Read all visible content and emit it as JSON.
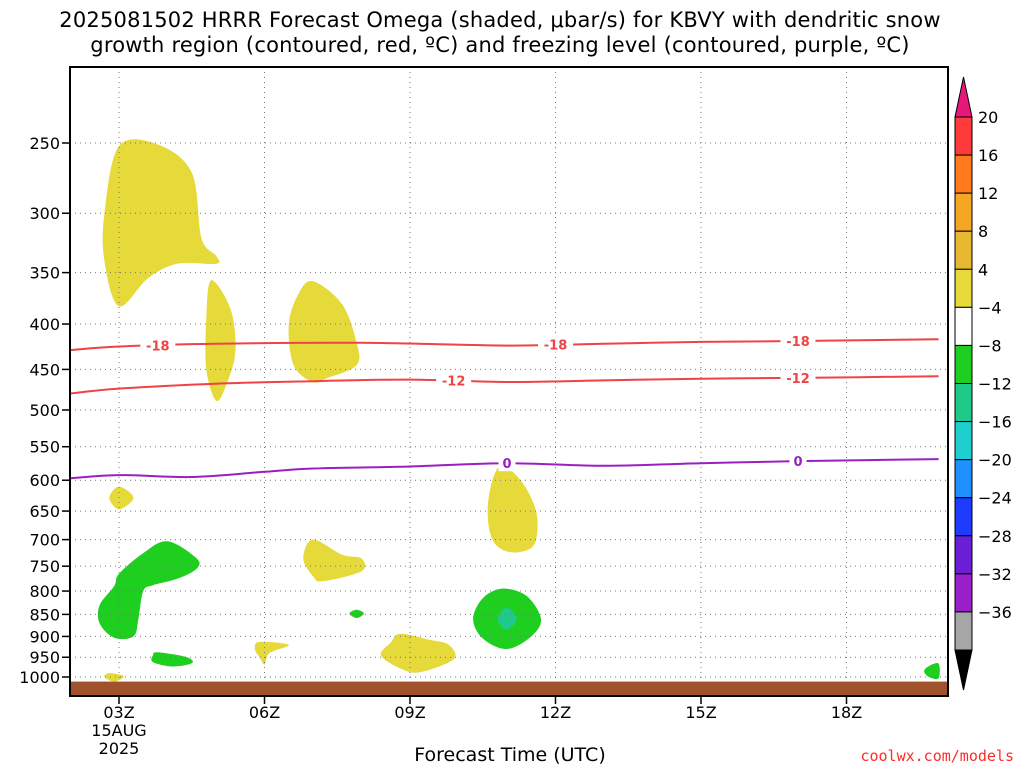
{
  "chart_data": {
    "type": "heatmap",
    "title_line1": "2025081502 HRRR Forecast Omega (shaded, μbar/s) for KBVY with dendritic snow",
    "title_line2": "growth region (contoured, red, ºC) and freezing level (contoured, purple, ºC)",
    "xlabel": "Forecast Time (UTC)",
    "x_ticks": [
      {
        "hour": 3,
        "label": "03Z",
        "sub1": "15AUG",
        "sub2": "2025"
      },
      {
        "hour": 6,
        "label": "06Z"
      },
      {
        "hour": 9,
        "label": "09Z"
      },
      {
        "hour": 12,
        "label": "12Z"
      },
      {
        "hour": 15,
        "label": "15Z"
      },
      {
        "hour": 18,
        "label": "18Z"
      }
    ],
    "xlim": [
      2,
      19.9
    ],
    "y_ticks": [
      250,
      300,
      350,
      400,
      450,
      500,
      550,
      600,
      650,
      700,
      750,
      800,
      850,
      900,
      950,
      1000
    ],
    "ylim_hPa": [
      200,
      1030
    ],
    "colorbar": {
      "labels": [
        20,
        16,
        12,
        8,
        4,
        -4,
        -8,
        -12,
        -16,
        -20,
        -24,
        -28,
        -32,
        -36
      ],
      "colors": [
        "#ff3a3a",
        "#ff7a1c",
        "#f5a623",
        "#e8b830",
        "#e6d93a",
        "#ffffff",
        "#1fcf1f",
        "#1ec98a",
        "#1fcfcf",
        "#1e90ff",
        "#1e3cff",
        "#6a1fd6",
        "#9a1fc8",
        "#a6a6a6"
      ],
      "top_cap_color": "#e8187a",
      "bottom_cap_color": "#000000"
    },
    "contours": [
      {
        "level": -18,
        "label": "-18",
        "color": "#ee4444",
        "points": [
          [
            2.0,
            428
          ],
          [
            3.0,
            424
          ],
          [
            5.0,
            421
          ],
          [
            8.0,
            420
          ],
          [
            11.0,
            423
          ],
          [
            13.0,
            421
          ],
          [
            15.0,
            419
          ],
          [
            17.0,
            418
          ],
          [
            19.9,
            416
          ]
        ],
        "label_hours": [
          3.8,
          12.0,
          17.0
        ]
      },
      {
        "level": -12,
        "label": "-12",
        "color": "#ee4444",
        "points": [
          [
            2.0,
            479
          ],
          [
            3.0,
            473
          ],
          [
            5.0,
            467
          ],
          [
            7.0,
            464
          ],
          [
            9.0,
            462
          ],
          [
            11.0,
            465
          ],
          [
            13.0,
            463
          ],
          [
            15.0,
            461
          ],
          [
            17.0,
            460
          ],
          [
            19.9,
            458
          ]
        ],
        "label_hours": [
          9.9,
          17.0
        ]
      },
      {
        "level": 0,
        "label": "0",
        "color": "#9b1fc0",
        "points": [
          [
            2.0,
            597
          ],
          [
            3.0,
            592
          ],
          [
            4.5,
            595
          ],
          [
            6.0,
            587
          ],
          [
            7.0,
            582
          ],
          [
            9.0,
            579
          ],
          [
            11.0,
            574
          ],
          [
            13.0,
            578
          ],
          [
            15.0,
            574
          ],
          [
            17.0,
            571
          ],
          [
            19.9,
            568
          ]
        ],
        "label_hours": [
          11.0,
          17.0
        ]
      }
    ],
    "omega_regions": [
      {
        "name": "yellow-upper-1",
        "bin": "4 to 8",
        "color": "#e6d93a",
        "points": [
          [
            3.0,
            252
          ],
          [
            3.8,
            251
          ],
          [
            4.5,
            270
          ],
          [
            4.7,
            320
          ],
          [
            5.0,
            335
          ],
          [
            5.0,
            342
          ],
          [
            4.2,
            342
          ],
          [
            3.6,
            355
          ],
          [
            3.0,
            382
          ],
          [
            2.7,
            340
          ],
          [
            2.7,
            300
          ]
        ]
      },
      {
        "name": "yellow-upper-2",
        "bin": "4 to 8",
        "color": "#e6d93a",
        "points": [
          [
            4.9,
            357
          ],
          [
            5.3,
            385
          ],
          [
            5.4,
            430
          ],
          [
            5.2,
            470
          ],
          [
            5.0,
            488
          ],
          [
            4.8,
            450
          ],
          [
            4.8,
            395
          ]
        ]
      },
      {
        "name": "yellow-upper-3",
        "bin": "4 to 8",
        "color": "#e6d93a",
        "points": [
          [
            7.0,
            358
          ],
          [
            7.6,
            380
          ],
          [
            7.9,
            420
          ],
          [
            7.9,
            445
          ],
          [
            7.3,
            460
          ],
          [
            7.0,
            465
          ],
          [
            6.6,
            445
          ],
          [
            6.5,
            400
          ],
          [
            6.7,
            370
          ]
        ]
      },
      {
        "name": "yellow-small-1",
        "bin": "4 to 8",
        "color": "#e6d93a",
        "points": [
          [
            3.0,
            610
          ],
          [
            3.3,
            628
          ],
          [
            3.0,
            647
          ],
          [
            2.8,
            628
          ]
        ]
      },
      {
        "name": "yellow-mid-1",
        "bin": "4 to 8",
        "color": "#e6d93a",
        "points": [
          [
            10.9,
            578
          ],
          [
            11.3,
            602
          ],
          [
            11.6,
            650
          ],
          [
            11.6,
            700
          ],
          [
            11.4,
            720
          ],
          [
            11.0,
            722
          ],
          [
            10.7,
            700
          ],
          [
            10.6,
            650
          ],
          [
            10.7,
            600
          ]
        ]
      },
      {
        "name": "yellow-mid-2",
        "bin": "4 to 8",
        "color": "#e6d93a",
        "points": [
          [
            7.0,
            700
          ],
          [
            7.6,
            728
          ],
          [
            8.0,
            735
          ],
          [
            8.0,
            760
          ],
          [
            7.2,
            780
          ],
          [
            7.0,
            770
          ],
          [
            6.8,
            735
          ]
        ]
      },
      {
        "name": "yellow-low-1",
        "bin": "4 to 8",
        "color": "#e6d93a",
        "points": [
          [
            8.8,
            894
          ],
          [
            9.4,
            908
          ],
          [
            9.8,
            920
          ],
          [
            9.9,
            955
          ],
          [
            9.2,
            988
          ],
          [
            8.8,
            978
          ],
          [
            8.4,
            945
          ],
          [
            8.6,
            915
          ]
        ]
      },
      {
        "name": "yellow-low-2",
        "bin": "4 to 8",
        "color": "#e6d93a",
        "points": [
          [
            5.9,
            913
          ],
          [
            6.5,
            920
          ],
          [
            6.1,
            940
          ],
          [
            6.0,
            968
          ],
          [
            5.9,
            950
          ],
          [
            5.8,
            930
          ]
        ]
      },
      {
        "name": "yellow-low-3",
        "bin": "4 to 8",
        "color": "#e6d93a",
        "points": [
          [
            2.8,
            990
          ],
          [
            3.1,
            998
          ],
          [
            2.9,
            1012
          ],
          [
            2.7,
            1000
          ]
        ]
      },
      {
        "name": "green-1",
        "bin": "-8 to -4",
        "color": "#1fcf1f",
        "points": [
          [
            4.0,
            703
          ],
          [
            4.6,
            735
          ],
          [
            4.6,
            755
          ],
          [
            4.2,
            775
          ],
          [
            3.7,
            788
          ],
          [
            3.5,
            800
          ],
          [
            3.4,
            860
          ],
          [
            3.3,
            900
          ],
          [
            2.9,
            903
          ],
          [
            2.6,
            870
          ],
          [
            2.6,
            830
          ],
          [
            2.9,
            790
          ],
          [
            3.0,
            765
          ],
          [
            3.5,
            725
          ]
        ]
      },
      {
        "name": "green-2",
        "bin": "-8 to -4",
        "color": "#1fcf1f",
        "points": [
          [
            3.8,
            938
          ],
          [
            4.4,
            950
          ],
          [
            4.5,
            965
          ],
          [
            4.1,
            973
          ],
          [
            3.7,
            962
          ],
          [
            3.7,
            945
          ]
        ]
      },
      {
        "name": "green-3",
        "bin": "-8 to -4",
        "color": "#1fcf1f",
        "points": [
          [
            10.9,
            795
          ],
          [
            11.4,
            810
          ],
          [
            11.7,
            860
          ],
          [
            11.5,
            900
          ],
          [
            11.0,
            930
          ],
          [
            10.5,
            905
          ],
          [
            10.3,
            860
          ],
          [
            10.5,
            815
          ]
        ]
      },
      {
        "name": "green-4",
        "bin": "-8 to -4",
        "color": "#1fcf1f",
        "points": [
          [
            7.9,
            840
          ],
          [
            8.05,
            848
          ],
          [
            7.9,
            858
          ],
          [
            7.75,
            848
          ]
        ]
      },
      {
        "name": "green-5",
        "bin": "-8 to -4",
        "color": "#1fcf1f",
        "points": [
          [
            19.9,
            966
          ],
          [
            19.9,
            1003
          ],
          [
            19.7,
            1000
          ],
          [
            19.6,
            985
          ],
          [
            19.7,
            972
          ]
        ]
      },
      {
        "name": "teal-1",
        "bin": "-12 to -8",
        "color": "#1ec98a",
        "points": [
          [
            11.0,
            835
          ],
          [
            11.2,
            860
          ],
          [
            11.0,
            885
          ],
          [
            10.8,
            860
          ]
        ]
      }
    ],
    "terrain": {
      "color": "#a0522d",
      "top_hPa": 1012
    }
  },
  "credit": "coolwx.com/models"
}
